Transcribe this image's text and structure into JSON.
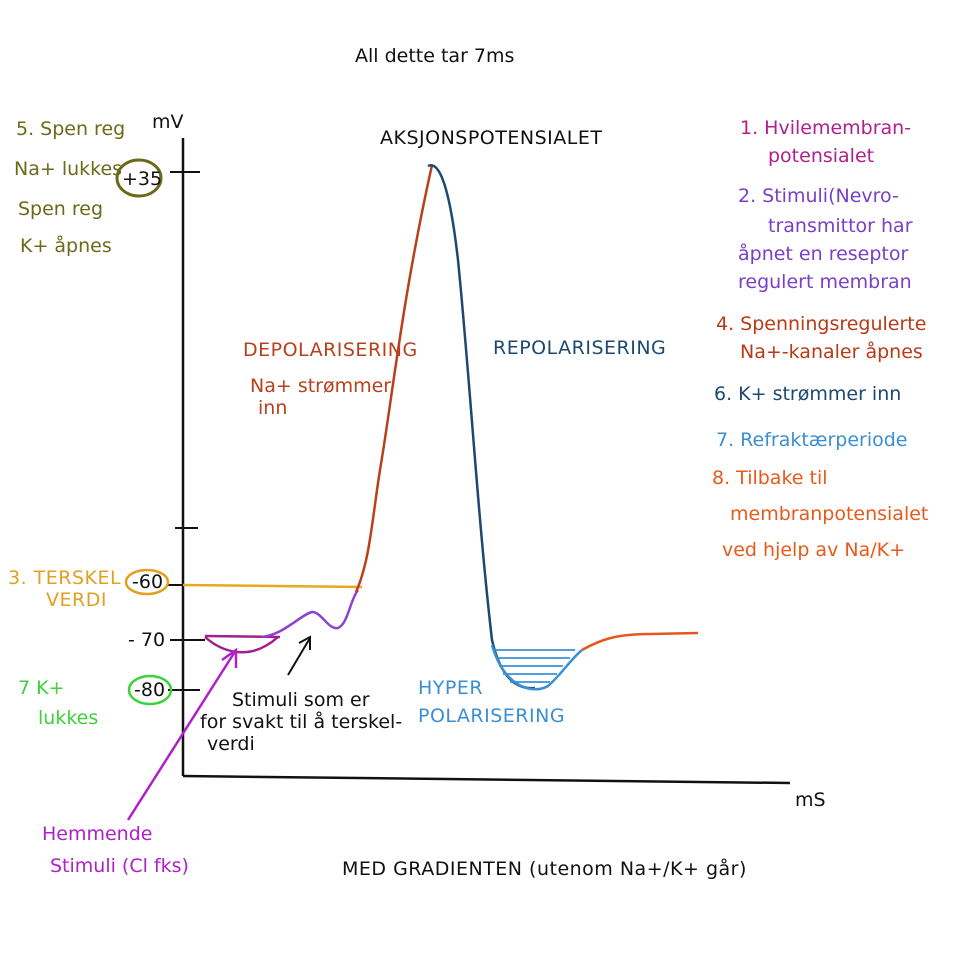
{
  "header_note": "All dette tar 7ms",
  "title": "AKSJONSPOTENSIALET",
  "axis": {
    "y_label": "mV",
    "x_label": "mS"
  },
  "bottom_note": "MED GRADIENTEN (utenom Na+/K+ går)",
  "y_markers": [
    {
      "label": "+35",
      "circled": true,
      "color": "#6b6a1a"
    },
    {
      "label": "-60",
      "circled": true,
      "color": "#e0a020"
    },
    {
      "label": "- 70",
      "circled": false,
      "color": "#222222"
    },
    {
      "label": "-80",
      "circled": true,
      "color": "#3cd23c"
    }
  ],
  "left_notes": {
    "olive": [
      "5. Spen reg",
      "Na+ lukkes",
      "Spen reg",
      "K+ åpnes"
    ],
    "threshold": [
      "3. TERSKEL",
      "VERDI"
    ],
    "green": [
      "7 K+",
      "lukkes"
    ],
    "inhibit": [
      "Hemmende",
      "Stimuli (Cl fks)"
    ]
  },
  "curve_labels": {
    "depol": "DEPOLARISERING",
    "depol_sub": [
      "Na+ strømmer",
      "inn"
    ],
    "repol": "REPOLARISERING",
    "hyper": [
      "HYPER",
      "POLARISERING"
    ],
    "stimuli_note": [
      "Stimuli som er",
      "for svakt til å terskel-",
      "verdi"
    ]
  },
  "legend": {
    "items": [
      {
        "lines": [
          "1. Hvilemembran-",
          "potensialet"
        ],
        "color": "#b0208c"
      },
      {
        "lines": [
          "2. Stimuli(Nevro-",
          "transmittor har",
          "åpnet en reseptor",
          "regulert membran"
        ],
        "color": "#7a3fc8"
      },
      {
        "lines": [
          "4. Spenningsregulerte",
          "Na+-kanaler åpnes"
        ],
        "color": "#b83a16"
      },
      {
        "lines": [
          "6. K+ strømmer inn"
        ],
        "color": "#1d4870"
      },
      {
        "lines": [
          "7. Refraktærperiode"
        ],
        "color": "#3a8fd4"
      },
      {
        "lines": [
          "8. Tilbake til",
          "membranpotensialet",
          "ved hjelp av Na/K+"
        ],
        "color": "#e85a1c"
      }
    ]
  },
  "colors": {
    "axis": "#111111",
    "resting": "#a0208c",
    "stimuli": "#8a44d0",
    "depol": "#b8401c",
    "repol": "#1d4870",
    "hyper": "#3a8fd4",
    "return": "#e8561c",
    "threshold_line": "#e8a820",
    "olive": "#6b6a1a",
    "green": "#3cd23c",
    "inhibit": "#b020c8"
  }
}
